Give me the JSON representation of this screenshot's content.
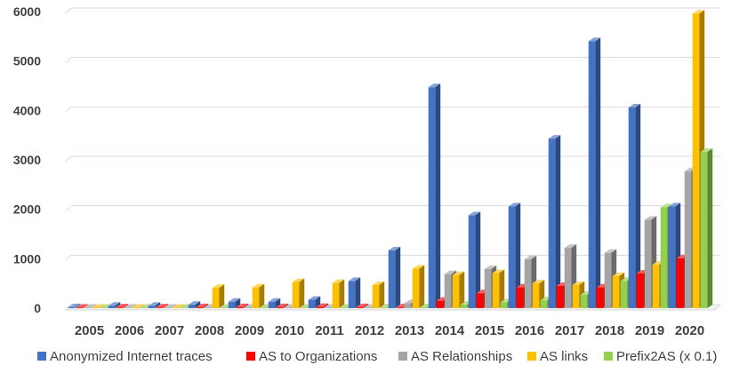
{
  "chart_data": {
    "type": "bar",
    "style": "3d-clustered-column",
    "categories": [
      "2005",
      "2006",
      "2007",
      "2008",
      "2009",
      "2010",
      "2011",
      "2012",
      "2013",
      "2014",
      "2015",
      "2016",
      "2017",
      "2018",
      "2019",
      "2020"
    ],
    "series": [
      {
        "name": "Anonymized Internet traces",
        "color": "#4472C4",
        "values": [
          20,
          50,
          50,
          70,
          130,
          130,
          170,
          550,
          1170,
          4470,
          1880,
          2060,
          3430,
          5400,
          4060,
          2060
        ]
      },
      {
        "name": "AS to Organizations",
        "color": "#FF0000",
        "values": [
          10,
          15,
          15,
          20,
          20,
          20,
          25,
          20,
          15,
          150,
          300,
          420,
          450,
          420,
          700,
          1010
        ]
      },
      {
        "name": "AS Relationships",
        "color": "#A5A5A5",
        "values": [
          10,
          10,
          10,
          10,
          10,
          10,
          10,
          10,
          100,
          690,
          790,
          990,
          1220,
          1120,
          1790,
          2770
        ]
      },
      {
        "name": "AS links",
        "color": "#FFC000",
        "values": [
          10,
          10,
          10,
          410,
          420,
          530,
          510,
          470,
          800,
          670,
          710,
          500,
          470,
          650,
          880,
          5960
        ]
      },
      {
        "name": "Prefix2AS (x 0.1)",
        "color": "#92D050",
        "values": [
          10,
          10,
          10,
          10,
          10,
          10,
          10,
          15,
          20,
          70,
          120,
          160,
          270,
          550,
          2040,
          3160
        ]
      }
    ],
    "yticks": [
      "0",
      "1000",
      "2000",
      "3000",
      "4000",
      "5000",
      "6000"
    ],
    "ylim": [
      0,
      6000
    ],
    "grid": true,
    "legend": "bottom"
  }
}
